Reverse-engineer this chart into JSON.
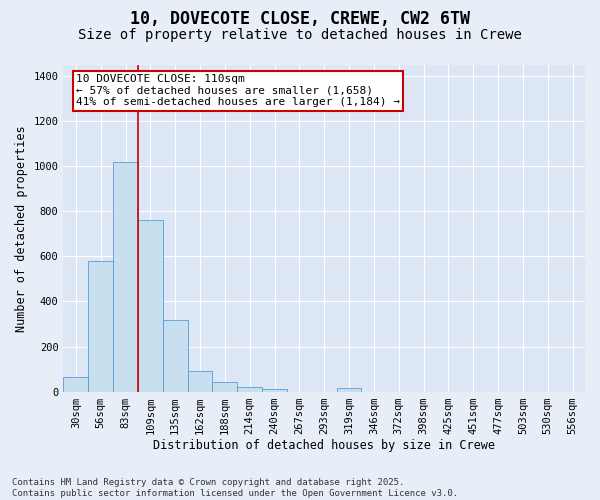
{
  "title_line1": "10, DOVECOTE CLOSE, CREWE, CW2 6TW",
  "title_line2": "Size of property relative to detached houses in Crewe",
  "xlabel": "Distribution of detached houses by size in Crewe",
  "ylabel": "Number of detached properties",
  "categories": [
    "30sqm",
    "56sqm",
    "83sqm",
    "109sqm",
    "135sqm",
    "162sqm",
    "188sqm",
    "214sqm",
    "240sqm",
    "267sqm",
    "293sqm",
    "319sqm",
    "346sqm",
    "372sqm",
    "398sqm",
    "425sqm",
    "451sqm",
    "477sqm",
    "503sqm",
    "530sqm",
    "556sqm"
  ],
  "values": [
    65,
    580,
    1020,
    760,
    320,
    90,
    42,
    22,
    12,
    0,
    0,
    14,
    0,
    0,
    0,
    0,
    0,
    0,
    0,
    0,
    0
  ],
  "bar_color": "#c8dff0",
  "bar_edge_color": "#5b9bd5",
  "vline_color": "#cc0000",
  "vline_index": 3,
  "annotation_text": "10 DOVECOTE CLOSE: 110sqm\n← 57% of detached houses are smaller (1,658)\n41% of semi-detached houses are larger (1,184) →",
  "annotation_box_facecolor": "#ffffff",
  "annotation_box_edgecolor": "#cc0000",
  "ylim": [
    0,
    1450
  ],
  "yticks": [
    0,
    200,
    400,
    600,
    800,
    1000,
    1200,
    1400
  ],
  "background_color": "#e8eef8",
  "plot_bg_color": "#dde6f5",
  "grid_color": "#ffffff",
  "footer_text": "Contains HM Land Registry data © Crown copyright and database right 2025.\nContains public sector information licensed under the Open Government Licence v3.0.",
  "title_fontsize": 12,
  "subtitle_fontsize": 10,
  "axis_label_fontsize": 8.5,
  "tick_fontsize": 7.5,
  "annotation_fontsize": 8,
  "footer_fontsize": 6.5
}
